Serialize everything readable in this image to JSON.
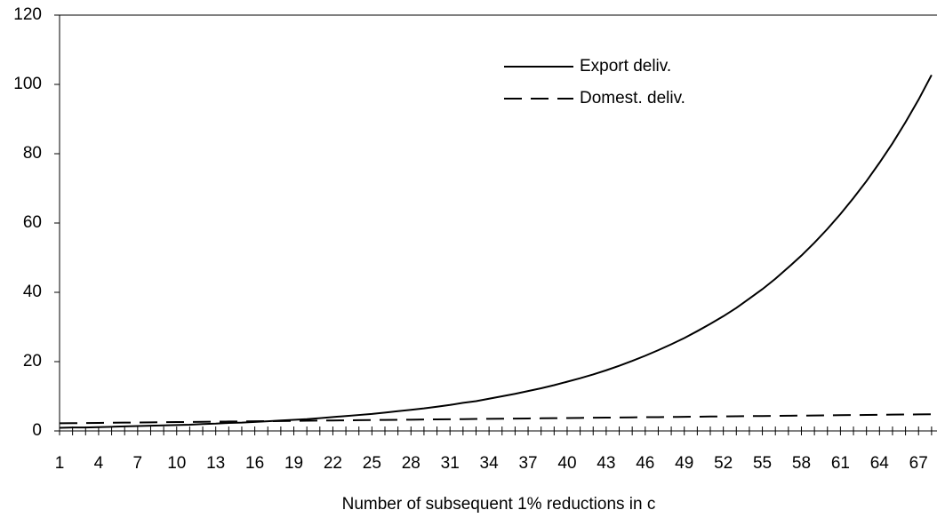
{
  "chart_data": {
    "type": "line",
    "x_label": "Number of subsequent 1% reductions in c",
    "categories": [
      1,
      null,
      null,
      4,
      null,
      null,
      7,
      null,
      null,
      10,
      null,
      null,
      13,
      null,
      null,
      16,
      null,
      null,
      19,
      null,
      null,
      22,
      null,
      null,
      25,
      null,
      null,
      28,
      null,
      null,
      31,
      null,
      null,
      34,
      null,
      null,
      37,
      null,
      null,
      40,
      null,
      null,
      43,
      null,
      null,
      46,
      null,
      null,
      49,
      null,
      null,
      52,
      null,
      null,
      55,
      null,
      null,
      58,
      null,
      null,
      61,
      null,
      null,
      64,
      null,
      null,
      67,
      null
    ],
    "series": [
      {
        "name": "Export deliv.",
        "color": "#000000",
        "dash": "solid",
        "values": [
          0.9,
          1.0,
          1.0,
          1.1,
          1.2,
          1.3,
          1.4,
          1.5,
          1.6,
          1.7,
          1.8,
          2.0,
          2.1,
          2.3,
          2.4,
          2.6,
          2.8,
          3.0,
          3.2,
          3.4,
          3.7,
          4.0,
          4.3,
          4.6,
          4.9,
          5.3,
          5.7,
          6.1,
          6.5,
          7.0,
          7.5,
          8.1,
          8.6,
          9.3,
          10.0,
          10.7,
          11.5,
          12.3,
          13.2,
          14.2,
          15.2,
          16.3,
          17.5,
          18.8,
          20.2,
          21.7,
          23.3,
          25.0,
          26.8,
          28.8,
          30.9,
          33.1,
          35.5,
          38.2,
          40.9,
          43.9,
          47.2,
          50.6,
          54.3,
          58.3,
          62.6,
          67.2,
          72.1,
          77.4,
          83.0,
          89.1,
          95.6,
          102.7
        ]
      },
      {
        "name": "Domest. deliv.",
        "color": "#000000",
        "dash": "dashed",
        "values": [
          2.2,
          2.24,
          2.28,
          2.32,
          2.36,
          2.4,
          2.43,
          2.47,
          2.51,
          2.55,
          2.59,
          2.63,
          2.67,
          2.71,
          2.75,
          2.79,
          2.82,
          2.86,
          2.9,
          2.94,
          2.98,
          3.02,
          3.06,
          3.1,
          3.14,
          3.18,
          3.21,
          3.25,
          3.29,
          3.33,
          3.37,
          3.41,
          3.45,
          3.49,
          3.53,
          3.57,
          3.6,
          3.64,
          3.68,
          3.72,
          3.76,
          3.8,
          3.84,
          3.88,
          3.92,
          3.96,
          3.99,
          4.03,
          4.07,
          4.11,
          4.15,
          4.19,
          4.23,
          4.27,
          4.31,
          4.35,
          4.38,
          4.42,
          4.46,
          4.5,
          4.54,
          4.58,
          4.62,
          4.66,
          4.7,
          4.74,
          4.77,
          4.81
        ]
      }
    ],
    "ylim": [
      0,
      120
    ],
    "yticks": [
      0,
      20,
      40,
      60,
      80,
      100,
      120
    ],
    "grid": false,
    "legend": "upper right"
  }
}
